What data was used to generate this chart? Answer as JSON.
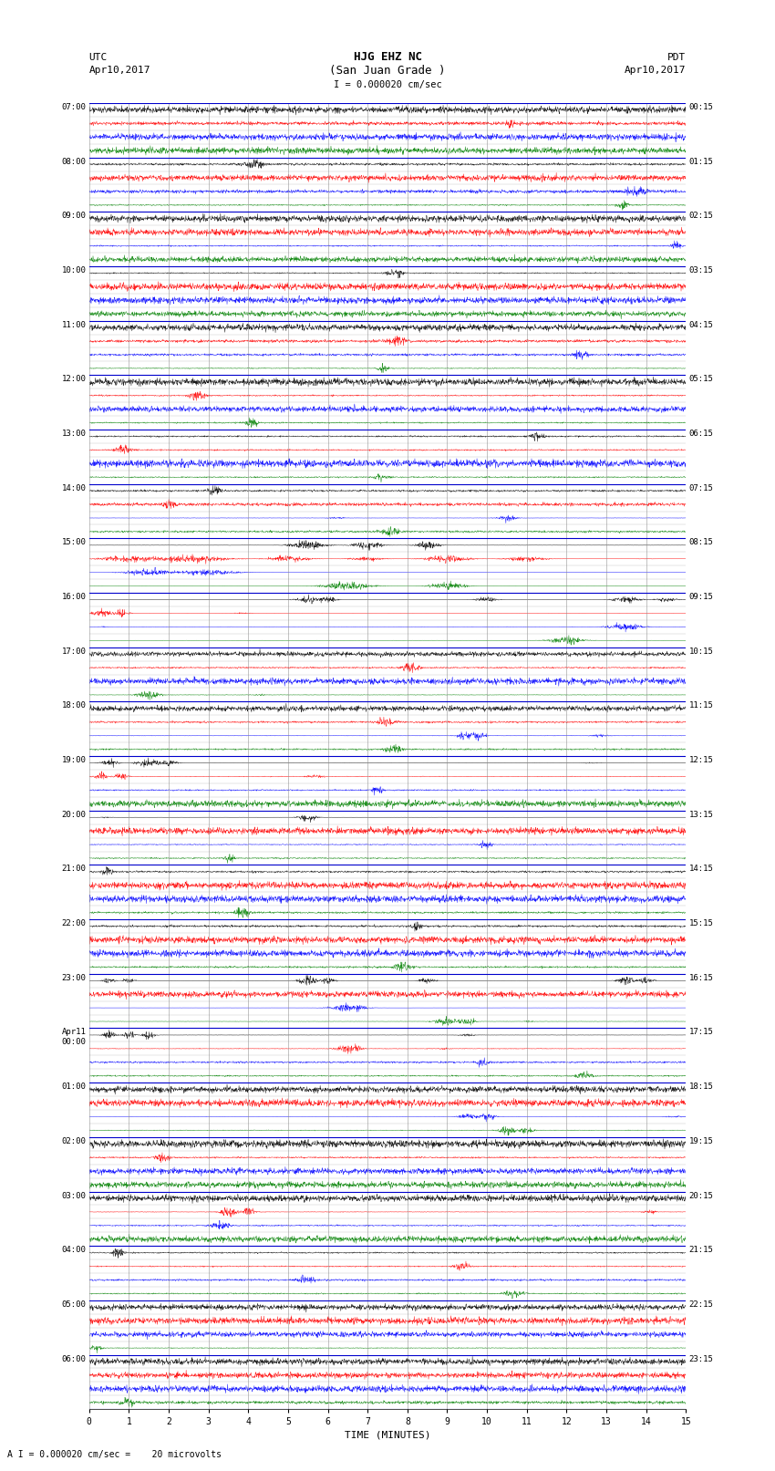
{
  "title_line1": "HJG EHZ NC",
  "title_line2": "(San Juan Grade )",
  "title_line3": "I = 0.000020 cm/sec",
  "label_left_top1": "UTC",
  "label_left_top2": "Apr10,2017",
  "label_right_top1": "PDT",
  "label_right_top2": "Apr10,2017",
  "xlabel": "TIME (MINUTES)",
  "footer": "A I = 0.000020 cm/sec =    20 microvolts",
  "utc_times": [
    "07:00",
    "08:00",
    "09:00",
    "10:00",
    "11:00",
    "12:00",
    "13:00",
    "14:00",
    "15:00",
    "16:00",
    "17:00",
    "18:00",
    "19:00",
    "20:00",
    "21:00",
    "22:00",
    "23:00",
    "Apr11\n00:00",
    "01:00",
    "02:00",
    "03:00",
    "04:00",
    "05:00",
    "06:00"
  ],
  "pdt_times": [
    "00:15",
    "01:15",
    "02:15",
    "03:15",
    "04:15",
    "05:15",
    "06:15",
    "07:15",
    "08:15",
    "09:15",
    "10:15",
    "11:15",
    "12:15",
    "13:15",
    "14:15",
    "15:15",
    "16:15",
    "17:15",
    "18:15",
    "19:15",
    "20:15",
    "21:15",
    "22:15",
    "23:15"
  ],
  "n_rows": 24,
  "traces_per_row": 4,
  "colors": [
    "black",
    "red",
    "blue",
    "green"
  ],
  "bg_color": "white",
  "grid_color": "#888888",
  "separator_color": "#0000cc",
  "minutes": 15,
  "seed": 42,
  "fig_width": 8.5,
  "fig_height": 16.13,
  "dpi": 100
}
